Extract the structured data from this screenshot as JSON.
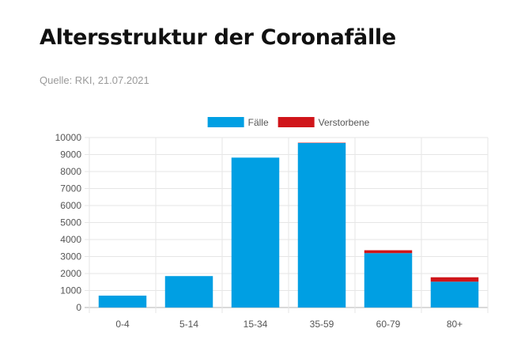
{
  "page": {
    "title": "Altersstruktur der Coronafälle",
    "source": "Quelle: RKI, 21.07.2021"
  },
  "chart_data": {
    "type": "bar",
    "stacked": true,
    "categories": [
      "0-4",
      "5-14",
      "15-34",
      "35-59",
      "60-79",
      "80+"
    ],
    "series": [
      {
        "name": "Fälle",
        "color": "#009fe3",
        "values": [
          700,
          1850,
          8820,
          9680,
          3200,
          1520
        ]
      },
      {
        "name": "Verstorbene",
        "color": "#d0151a",
        "values": [
          0,
          0,
          0,
          20,
          170,
          260
        ]
      }
    ],
    "ylim": [
      0,
      10000
    ],
    "yticks": [
      "0",
      "1000",
      "2000",
      "3000",
      "4000",
      "5000",
      "6000",
      "7000",
      "8000",
      "9000",
      "10000"
    ],
    "grid": true,
    "legend": "top-center"
  }
}
